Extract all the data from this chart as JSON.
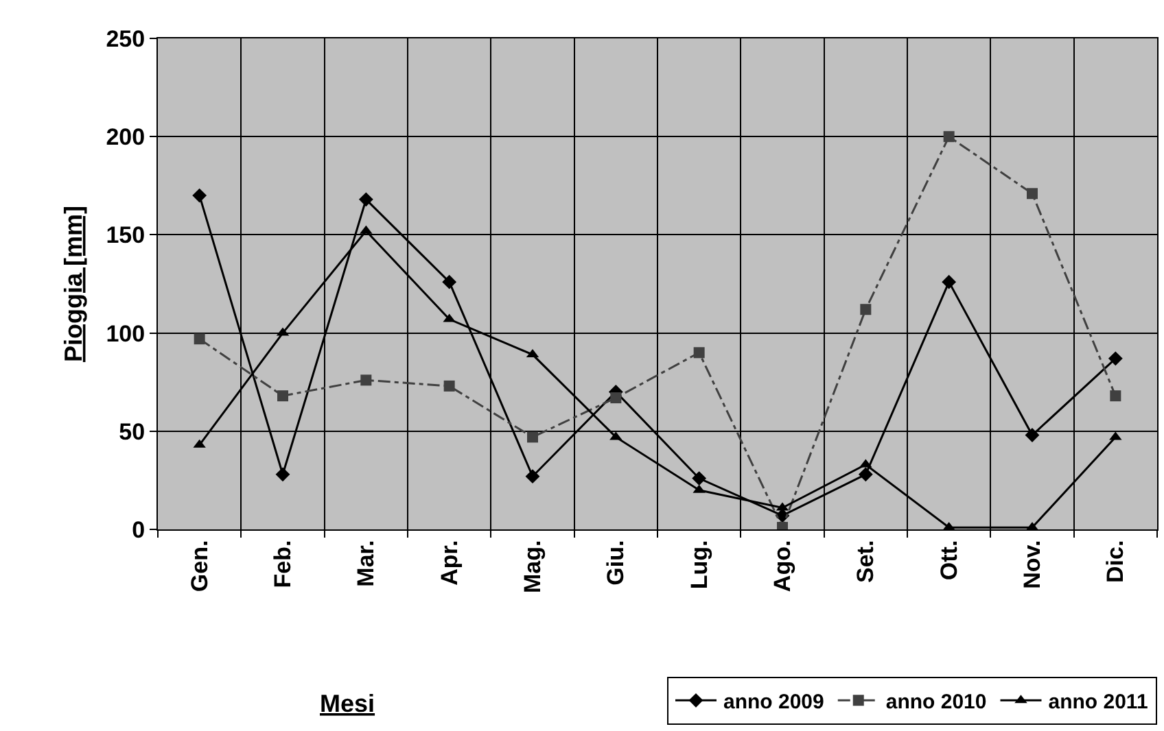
{
  "chart_data": {
    "type": "line",
    "xlabel": "Mesi",
    "ylabel": "Pioggia [mm]",
    "categories": [
      "Gen.",
      "Feb.",
      "Mar.",
      "Apr.",
      "Mag.",
      "Giu.",
      "Lug.",
      "Ago.",
      "Set.",
      "Ott.",
      "Nov.",
      "Dic."
    ],
    "series": [
      {
        "name": "anno 2009",
        "color": "#000000",
        "marker": "diamond",
        "line_style": "solid",
        "values": [
          170,
          28,
          168,
          126,
          27,
          70,
          26,
          7,
          28,
          126,
          48,
          87
        ]
      },
      {
        "name": "anno 2010",
        "color": "#404040",
        "marker": "square",
        "line_style": "dashed",
        "values": [
          97,
          68,
          76,
          73,
          47,
          67,
          90,
          1,
          112,
          200,
          171,
          68
        ]
      },
      {
        "name": "anno 2011",
        "color": "#000000",
        "marker": "triangle",
        "line_style": "solid",
        "values": [
          43,
          100,
          152,
          107,
          89,
          47,
          20,
          11,
          33,
          1,
          1,
          47
        ]
      }
    ],
    "ylim": [
      0,
      250
    ],
    "yticks": [
      0,
      50,
      100,
      150,
      200,
      250
    ],
    "grid": true,
    "legend": "bottom"
  }
}
